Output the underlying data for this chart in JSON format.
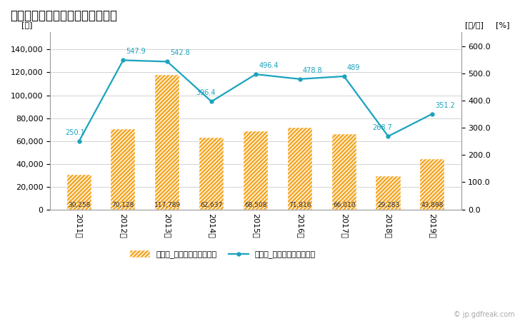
{
  "title": "非木造建築物の床面積合計の推移",
  "years": [
    "2011年",
    "2012年",
    "2013年",
    "2014年",
    "2015年",
    "2016年",
    "2017年",
    "2018年",
    "2019年"
  ],
  "bar_values": [
    30258,
    70128,
    117789,
    62637,
    68508,
    71816,
    66010,
    29283,
    43898
  ],
  "line_values": [
    250.1,
    547.9,
    542.8,
    396.4,
    496.4,
    478.8,
    489.0,
    268.7,
    351.2
  ],
  "line_labels": [
    "250.1",
    "547.9",
    "542.8",
    "396.4",
    "496.4",
    "478.8",
    "489",
    "268.7",
    "351.2"
  ],
  "bar_color": "#f5a623",
  "line_color": "#1aa3be",
  "ylabel_left": "[㎡]",
  "ylabel_right_top": "[㎡/棟]",
  "ylabel_right_pct": "[%]",
  "ylim_left": [
    0,
    155000
  ],
  "ylim_right": [
    0,
    650
  ],
  "yticks_left": [
    0,
    20000,
    40000,
    60000,
    80000,
    100000,
    120000,
    140000
  ],
  "yticks_right": [
    0.0,
    100.0,
    200.0,
    300.0,
    400.0,
    500.0,
    600.0
  ],
  "legend_bar": "非木造_床面積合計（左軸）",
  "legend_line": "非木造_平均床面積（右軸）",
  "background_color": "#ffffff",
  "grid_color": "#cccccc",
  "title_fontsize": 12,
  "axis_fontsize": 8,
  "bar_label_fontsize": 6.5,
  "line_label_fontsize": 7,
  "watermark": "© jp.gdfreak.com"
}
